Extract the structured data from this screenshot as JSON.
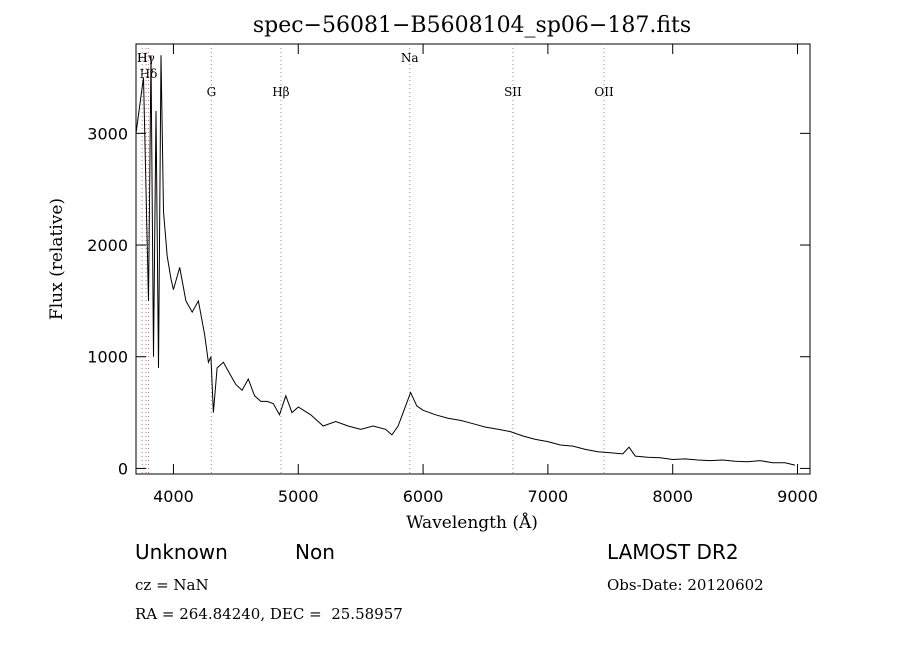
{
  "chart_data": {
    "type": "line",
    "title": "spec−56081−B5608104_sp06−187.fits",
    "xlabel": "Wavelength (Å)",
    "ylabel": "Flux (relative)",
    "xlim": [
      3700,
      9100
    ],
    "ylim": [
      -50,
      3800
    ],
    "x_ticks": [
      4000,
      5000,
      6000,
      7000,
      8000,
      9000
    ],
    "y_ticks": [
      0,
      1000,
      2000,
      3000
    ],
    "line_color": "#000000",
    "marker_color": "#c08080",
    "spectral_lines": [
      {
        "label": "Hγ",
        "x": 3780,
        "tier": "high"
      },
      {
        "label": "Hδ",
        "x": 3800,
        "tier": "mid"
      },
      {
        "label": "H",
        "x": 3750,
        "tier": "high2"
      },
      {
        "label": "G",
        "x": 4304,
        "tier": "low"
      },
      {
        "label": "Hβ",
        "x": 4861,
        "tier": "low"
      },
      {
        "label": "Na",
        "x": 5893,
        "tier": "high"
      },
      {
        "label": "SII",
        "x": 6720,
        "tier": "low"
      },
      {
        "label": "OII",
        "x": 7450,
        "tier": "low"
      }
    ],
    "x": [
      3700,
      3760,
      3800,
      3820,
      3840,
      3860,
      3880,
      3900,
      3920,
      3950,
      3980,
      4000,
      4050,
      4100,
      4150,
      4200,
      4250,
      4280,
      4300,
      4320,
      4350,
      4400,
      4450,
      4500,
      4550,
      4600,
      4650,
      4700,
      4750,
      4800,
      4850,
      4900,
      4950,
      5000,
      5100,
      5200,
      5300,
      5400,
      5500,
      5600,
      5700,
      5750,
      5800,
      5850,
      5900,
      5950,
      6000,
      6100,
      6200,
      6300,
      6400,
      6500,
      6600,
      6700,
      6800,
      6900,
      7000,
      7100,
      7200,
      7300,
      7400,
      7500,
      7600,
      7650,
      7700,
      7800,
      7900,
      8000,
      8100,
      8200,
      8300,
      8400,
      8500,
      8600,
      8700,
      8800,
      8900,
      8980
    ],
    "y": [
      3000,
      3500,
      1500,
      3700,
      1000,
      3200,
      900,
      3700,
      2300,
      1900,
      1700,
      1600,
      1800,
      1500,
      1400,
      1500,
      1200,
      950,
      1000,
      500,
      900,
      950,
      850,
      750,
      700,
      800,
      650,
      600,
      600,
      580,
      480,
      650,
      500,
      550,
      480,
      380,
      420,
      380,
      350,
      380,
      350,
      300,
      380,
      530,
      680,
      560,
      520,
      480,
      450,
      430,
      400,
      370,
      350,
      330,
      290,
      260,
      240,
      210,
      200,
      170,
      150,
      140,
      130,
      190,
      110,
      100,
      95,
      80,
      85,
      75,
      70,
      75,
      65,
      60,
      70,
      50,
      50,
      30
    ]
  },
  "info": {
    "classification": "Unknown",
    "subclass": "Non",
    "survey": "LAMOST DR2",
    "cz": "cz = NaN",
    "obs_date": "Obs-Date: 20120602",
    "coords": "RA = 264.84240, DEC =  25.58957"
  }
}
